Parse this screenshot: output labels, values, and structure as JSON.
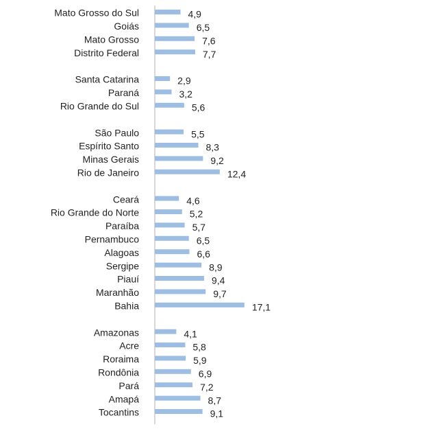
{
  "chart_data": {
    "type": "bar",
    "orientation": "horizontal",
    "color": "#9dbde3",
    "categories": [
      "Mato Grosso do Sul",
      "Goiás",
      "Mato Grosso",
      "Distrito Federal",
      null,
      "Santa Catarina",
      "Paraná",
      "Rio Grande do Sul",
      null,
      "São Paulo",
      "Espírito Santo",
      "Minas Gerais",
      "Rio de Janeiro",
      null,
      "Ceará",
      "Rio Grande do Norte",
      "Paraíba",
      "Pernambuco",
      "Alagoas",
      "Sergipe",
      "Piauí",
      "Maranhão",
      "Bahia",
      null,
      "Amazonas",
      "Acre",
      "Roraima",
      "Rondônia",
      "Pará",
      "Amapá",
      "Tocantins"
    ],
    "values": [
      4.9,
      6.5,
      7.6,
      7.7,
      null,
      2.9,
      3.2,
      5.6,
      null,
      5.5,
      8.3,
      9.2,
      12.4,
      null,
      4.6,
      5.2,
      5.7,
      6.5,
      6.6,
      8.9,
      9.4,
      9.7,
      17.1,
      null,
      4.1,
      5.8,
      5.9,
      6.9,
      7.2,
      8.7,
      9.1
    ],
    "value_labels": [
      "4,9",
      "6,5",
      "7,6",
      "7,7",
      null,
      "2,9",
      "3,2",
      "5,6",
      null,
      "5,5",
      "8,3",
      "9,2",
      "12,4",
      null,
      "4,6",
      "5,2",
      "5,7",
      "6,5",
      "6,6",
      "8,9",
      "9,4",
      "9,7",
      "17,1",
      null,
      "4,1",
      "5,8",
      "5,9",
      "6,9",
      "7,2",
      "8,7",
      "9,1"
    ]
  }
}
